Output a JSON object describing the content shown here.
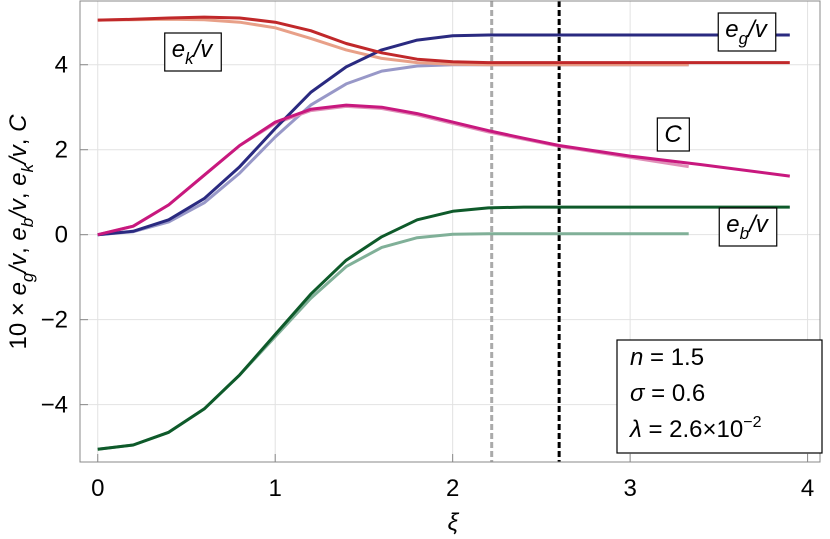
{
  "chart_data": {
    "type": "line",
    "xlabel": "ξ",
    "ylabel": {
      "prefix": "10 × ",
      "sep": ", ",
      "terms": [
        {
          "base": "e",
          "sub": "g",
          "tail": "/v"
        },
        {
          "base": "e",
          "sub": "b",
          "tail": "/v"
        },
        {
          "base": "e",
          "sub": "k",
          "tail": "/v"
        }
      ],
      "last": "C"
    },
    "xlim": [
      -0.1,
      4.07
    ],
    "ylim": [
      -5.35,
      5.5
    ],
    "xticks": [
      0,
      1,
      2,
      3,
      4
    ],
    "yticks": [
      {
        "value": -4,
        "label": "−4"
      },
      {
        "value": -2,
        "label": "−2"
      },
      0,
      2,
      4
    ],
    "grid": true,
    "series": [
      {
        "color": "#9898c8",
        "x": [
          0,
          0.2,
          0.4,
          0.6,
          0.8,
          1.0,
          1.2,
          1.4,
          1.6,
          1.8,
          2.0,
          2.2,
          2.6,
          3.0,
          3.33
        ],
        "values": [
          0,
          0.07,
          0.3,
          0.75,
          1.45,
          2.3,
          3.05,
          3.55,
          3.85,
          3.97,
          4.0,
          4.0,
          4.0,
          4.0,
          4.0
        ]
      },
      {
        "color": "#e8a088",
        "x": [
          0,
          0.2,
          0.4,
          0.6,
          0.8,
          1.0,
          1.2,
          1.4,
          1.6,
          1.8,
          2.0,
          2.2,
          2.6,
          3.0,
          3.33
        ],
        "values": [
          5.05,
          5.06,
          5.07,
          5.06,
          5.0,
          4.87,
          4.62,
          4.35,
          4.15,
          4.05,
          4.01,
          4.0,
          4.0,
          4.0,
          4.0
        ]
      },
      {
        "color": "#e090b8",
        "x": [
          0,
          0.2,
          0.4,
          0.6,
          0.8,
          1.0,
          1.2,
          1.4,
          1.6,
          1.8,
          2.0,
          2.2,
          2.6,
          3.0,
          3.33
        ],
        "values": [
          0,
          0.2,
          0.7,
          1.4,
          2.1,
          2.62,
          2.92,
          3.02,
          2.97,
          2.82,
          2.62,
          2.42,
          2.08,
          1.82,
          1.6
        ]
      },
      {
        "color": "#80b098",
        "x": [
          0,
          0.2,
          0.4,
          0.6,
          0.8,
          1.0,
          1.2,
          1.4,
          1.6,
          1.8,
          2.0,
          2.2,
          2.6,
          3.0,
          3.33
        ],
        "values": [
          -5.05,
          -4.95,
          -4.65,
          -4.1,
          -3.3,
          -2.4,
          -1.5,
          -0.75,
          -0.3,
          -0.07,
          0.01,
          0.02,
          0.02,
          0.02,
          0.02
        ]
      },
      {
        "color": "#2a2a80",
        "x": [
          0,
          0.2,
          0.4,
          0.6,
          0.8,
          1.0,
          1.2,
          1.4,
          1.6,
          1.8,
          2.0,
          2.2,
          2.4,
          2.6,
          3.0,
          3.4,
          3.9
        ],
        "values": [
          0,
          0.08,
          0.35,
          0.85,
          1.6,
          2.5,
          3.35,
          3.95,
          4.35,
          4.58,
          4.68,
          4.7,
          4.7,
          4.7,
          4.7,
          4.7,
          4.7
        ]
      },
      {
        "color": "#c0282a",
        "x": [
          0,
          0.2,
          0.4,
          0.6,
          0.8,
          1.0,
          1.2,
          1.4,
          1.6,
          1.8,
          2.0,
          2.2,
          2.4,
          2.6,
          3.0,
          3.4,
          3.9
        ],
        "values": [
          5.05,
          5.07,
          5.1,
          5.12,
          5.1,
          5.0,
          4.8,
          4.5,
          4.28,
          4.13,
          4.07,
          4.05,
          4.05,
          4.05,
          4.05,
          4.05,
          4.05
        ]
      },
      {
        "color": "#c8187e",
        "x": [
          0,
          0.2,
          0.4,
          0.6,
          0.8,
          1.0,
          1.2,
          1.4,
          1.6,
          1.8,
          2.0,
          2.2,
          2.4,
          2.6,
          3.0,
          3.4,
          3.9
        ],
        "values": [
          0,
          0.2,
          0.7,
          1.4,
          2.1,
          2.65,
          2.95,
          3.05,
          3.0,
          2.85,
          2.65,
          2.45,
          2.27,
          2.1,
          1.85,
          1.65,
          1.38
        ]
      },
      {
        "color": "#0e5a2a",
        "x": [
          0,
          0.2,
          0.4,
          0.6,
          0.8,
          1.0,
          1.2,
          1.4,
          1.6,
          1.8,
          2.0,
          2.2,
          2.4,
          2.6,
          3.0,
          3.4,
          3.9
        ],
        "values": [
          -5.05,
          -4.95,
          -4.65,
          -4.1,
          -3.3,
          -2.35,
          -1.4,
          -0.6,
          -0.05,
          0.35,
          0.55,
          0.63,
          0.65,
          0.65,
          0.65,
          0.65,
          0.65
        ]
      }
    ],
    "vlines": [
      {
        "x": 2.22,
        "color": "#aaaaaa"
      },
      {
        "x": 2.6,
        "color": "#000000"
      }
    ],
    "annotations": [
      {
        "base": "e",
        "sub": "k",
        "tail": "/v"
      },
      {
        "base": "e",
        "sub": "g",
        "tail": "/v"
      },
      {
        "base": "C"
      },
      {
        "base": "e",
        "sub": "b",
        "tail": "/v"
      }
    ],
    "info": [
      {
        "var": "n",
        "text": " = 1.5"
      },
      {
        "var": "σ",
        "text": " = 0.6"
      },
      {
        "var": "λ",
        "text": " = 2.6×10",
        "sup": "−2"
      }
    ]
  }
}
